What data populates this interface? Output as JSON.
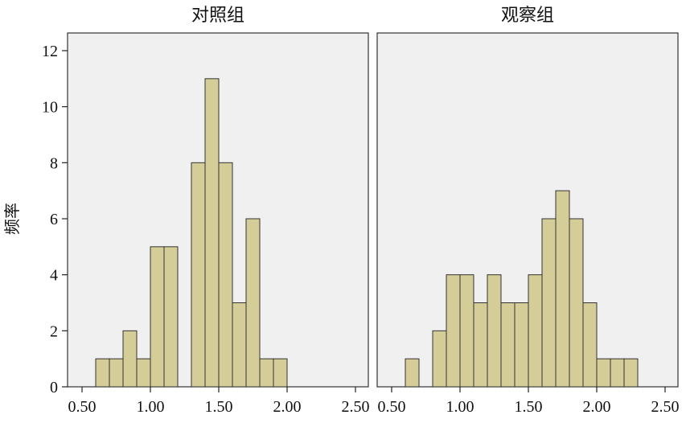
{
  "y_axis_label": "频率",
  "chart_data": [
    {
      "type": "bar",
      "title": "对照组",
      "xlabel": "",
      "ylabel": "频率",
      "xlim": [
        0.5,
        2.5
      ],
      "ylim": [
        0,
        12
      ],
      "x_ticks": [
        "0.50",
        "1.00",
        "1.50",
        "2.00",
        "2.50"
      ],
      "y_ticks": [
        "0",
        "2",
        "4",
        "6",
        "8",
        "10",
        "12"
      ],
      "bin_width": 0.1,
      "bins": [
        {
          "start": 0.6,
          "count": 1
        },
        {
          "start": 0.7,
          "count": 1
        },
        {
          "start": 0.8,
          "count": 2
        },
        {
          "start": 0.9,
          "count": 1
        },
        {
          "start": 1.0,
          "count": 5
        },
        {
          "start": 1.1,
          "count": 5
        },
        {
          "start": 1.3,
          "count": 8
        },
        {
          "start": 1.4,
          "count": 11
        },
        {
          "start": 1.5,
          "count": 8
        },
        {
          "start": 1.6,
          "count": 3
        },
        {
          "start": 1.7,
          "count": 6
        },
        {
          "start": 1.8,
          "count": 1
        },
        {
          "start": 1.9,
          "count": 1
        }
      ]
    },
    {
      "type": "bar",
      "title": "观察组",
      "xlabel": "",
      "ylabel": "",
      "xlim": [
        0.5,
        2.5
      ],
      "ylim": [
        0,
        12
      ],
      "x_ticks": [
        "0.50",
        "1.00",
        "1.50",
        "2.00",
        "2.50"
      ],
      "y_ticks": [],
      "bin_width": 0.1,
      "bins": [
        {
          "start": 0.6,
          "count": 1
        },
        {
          "start": 0.8,
          "count": 2
        },
        {
          "start": 0.9,
          "count": 4
        },
        {
          "start": 1.0,
          "count": 4
        },
        {
          "start": 1.1,
          "count": 3
        },
        {
          "start": 1.2,
          "count": 4
        },
        {
          "start": 1.3,
          "count": 3
        },
        {
          "start": 1.4,
          "count": 3
        },
        {
          "start": 1.5,
          "count": 4
        },
        {
          "start": 1.6,
          "count": 6
        },
        {
          "start": 1.7,
          "count": 7
        },
        {
          "start": 1.8,
          "count": 6
        },
        {
          "start": 1.9,
          "count": 3
        },
        {
          "start": 2.0,
          "count": 1
        },
        {
          "start": 2.1,
          "count": 1
        },
        {
          "start": 2.2,
          "count": 1
        }
      ]
    }
  ]
}
